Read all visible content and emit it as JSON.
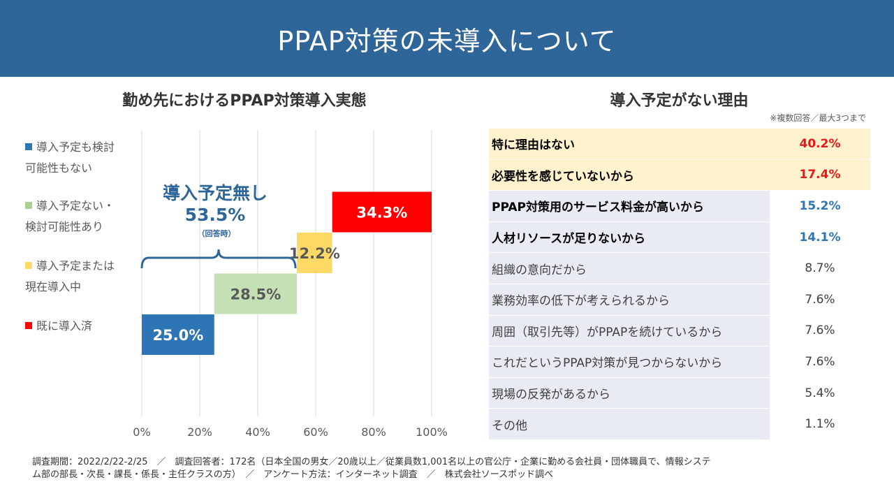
{
  "header": {
    "title": "PPAP対策の未導入について"
  },
  "left_title": "勤め先におけるPPAP対策導入実態",
  "legend": [
    {
      "line1": "導入予定も検討",
      "line2": "可能性もない",
      "color": "#2e75b6"
    },
    {
      "line1": "導入予定ない・",
      "line2": "検討可能性あり",
      "color": "#a9d18e"
    },
    {
      "line1": "導入予定または",
      "line2": "現在導入中",
      "color": "#ffd966"
    },
    {
      "line1": "既に導入済",
      "line2": "",
      "color": "#ff0000"
    }
  ],
  "annotation": {
    "title": "導入予定無し",
    "value": "53.5%",
    "sub": "（回答時）"
  },
  "chart_data": {
    "type": "bar",
    "orientation": "horizontal-waterfall",
    "categories": [
      "導入予定も検討可能性もない",
      "導入予定ない・検討可能性あり",
      "導入予定または現在導入中",
      "既に導入済"
    ],
    "values": [
      25.0,
      28.5,
      12.2,
      34.3
    ],
    "labels": [
      "25.0%",
      "28.5%",
      "12.2%",
      "34.3%"
    ],
    "colors": [
      "#2e75b6",
      "#c5e0b4",
      "#ffd966",
      "#ff0000"
    ],
    "label_colors": [
      "#ffffff",
      "#595959",
      "#595959",
      "#ffffff"
    ],
    "xlim": [
      0,
      100
    ],
    "xticks": [
      "0%",
      "20%",
      "40%",
      "60%",
      "80%",
      "100%"
    ],
    "grid": true
  },
  "reasons": {
    "title": "導入予定がない理由",
    "note": "※複数回答／最大3つまで",
    "rows": [
      {
        "label": "特に理由はない",
        "value": "40.2%",
        "tier": "top"
      },
      {
        "label": "必要性を感じていないから",
        "value": "17.4%",
        "tier": "top"
      },
      {
        "label": "PPAP対策用のサービス料金が高いから",
        "value": "15.2%",
        "tier": "mid"
      },
      {
        "label": "人材リソースが足りないから",
        "value": "14.1%",
        "tier": "mid"
      },
      {
        "label": "組織の意向だから",
        "value": "8.7%",
        "tier": "low"
      },
      {
        "label": "業務効率の低下が考えられるから",
        "value": "7.6%",
        "tier": "low"
      },
      {
        "label": "周囲（取引先等）がPPAPを続けているから",
        "value": "7.6%",
        "tier": "low"
      },
      {
        "label": "これだというPPAP対策が見つからないから",
        "value": "7.6%",
        "tier": "low"
      },
      {
        "label": "現場の反発があるから",
        "value": "5.4%",
        "tier": "low"
      },
      {
        "label": "その他",
        "value": "1.1%",
        "tier": "low"
      }
    ]
  },
  "footer": {
    "line1": "調査期間：2022/2/22-2/25　／　調査回答者：172名（日本全国の男女／20歳以上／従業員数1,001名以上の官公庁・企業に勤める会社員・団体職員で、情報システ",
    "line2": "ム部の部長・次長・課長・係長・主任クラスの方）　／　アンケート方法：インターネット調査　／　株式会社ソースポッド調べ"
  }
}
